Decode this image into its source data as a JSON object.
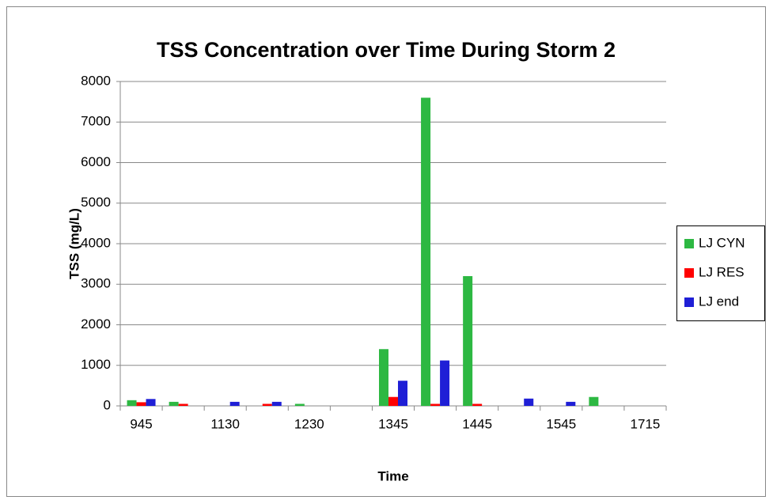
{
  "chart_data": {
    "type": "bar",
    "title": "TSS Concentration over Time During Storm 2",
    "x_label": "Time",
    "y_label": "TSS (mg/L)",
    "categories": [
      "945",
      null,
      "1130",
      null,
      "1230",
      null,
      "1345",
      null,
      "1445",
      null,
      "1545",
      null,
      "1715"
    ],
    "series": [
      {
        "name": "LJ CYN",
        "color": "#2db842",
        "values": [
          140,
          100,
          0,
          0,
          50,
          0,
          1400,
          7600,
          3200,
          0,
          0,
          220,
          0
        ]
      },
      {
        "name": "LJ RES",
        "color": "#ff0000",
        "values": [
          90,
          50,
          0,
          50,
          0,
          0,
          220,
          50,
          50,
          0,
          0,
          0,
          0
        ]
      },
      {
        "name": "LJ end",
        "color": "#1f1fd6",
        "values": [
          170,
          0,
          100,
          100,
          0,
          0,
          620,
          1120,
          0,
          180,
          100,
          0,
          0
        ]
      }
    ],
    "ylim": [
      0,
      8000
    ],
    "yticks": [
      0,
      1000,
      2000,
      3000,
      4000,
      5000,
      6000,
      7000,
      8000
    ],
    "grid": true,
    "legend": "right"
  }
}
